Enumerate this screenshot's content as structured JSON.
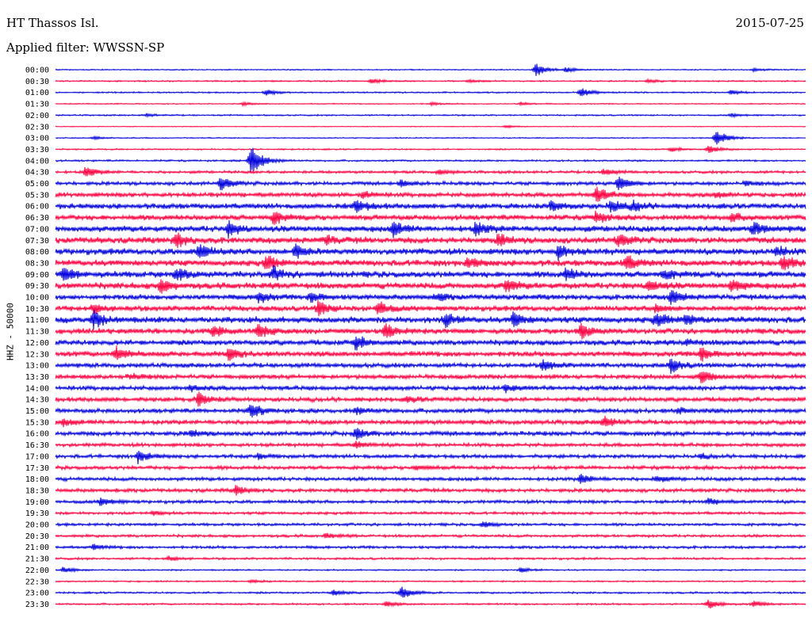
{
  "header": {
    "station": "HT Thassos Isl.",
    "date": "2015-07-25",
    "filter": "Applied filter: WWSSN-SP"
  },
  "chart_data": {
    "type": "line",
    "title": "HT Thassos Isl.",
    "subtitle": "Applied filter: WWSSN-SP",
    "ylabel": "HHZ - 50000",
    "xlabel": "",
    "legend": "none",
    "grid": false,
    "colors": {
      "even_rows": "#0000dd",
      "odd_rows": "#ff0040"
    },
    "rows": [
      {
        "label": "00:00",
        "noise": 0.6,
        "events": [
          {
            "t": 0.64,
            "a": 9
          },
          {
            "t": 0.68,
            "a": 3
          },
          {
            "t": 0.93,
            "a": 2
          }
        ]
      },
      {
        "label": "00:30",
        "noise": 0.8,
        "events": [
          {
            "t": 0.42,
            "a": 3
          },
          {
            "t": 0.55,
            "a": 2
          },
          {
            "t": 0.79,
            "a": 2
          }
        ]
      },
      {
        "label": "01:00",
        "noise": 0.8,
        "events": [
          {
            "t": 0.28,
            "a": 4
          },
          {
            "t": 0.7,
            "a": 6
          },
          {
            "t": 0.9,
            "a": 3
          }
        ]
      },
      {
        "label": "01:30",
        "noise": 0.6,
        "events": [
          {
            "t": 0.25,
            "a": 2
          },
          {
            "t": 0.5,
            "a": 2
          },
          {
            "t": 0.62,
            "a": 2
          }
        ]
      },
      {
        "label": "02:00",
        "noise": 0.8,
        "events": [
          {
            "t": 0.12,
            "a": 2
          },
          {
            "t": 0.9,
            "a": 2
          }
        ]
      },
      {
        "label": "02:30",
        "noise": 0.4,
        "events": [
          {
            "t": 0.6,
            "a": 2
          }
        ]
      },
      {
        "label": "03:00",
        "noise": 0.6,
        "events": [
          {
            "t": 0.05,
            "a": 2
          },
          {
            "t": 0.88,
            "a": 12
          }
        ]
      },
      {
        "label": "03:30",
        "noise": 0.8,
        "events": [
          {
            "t": 0.82,
            "a": 3
          },
          {
            "t": 0.87,
            "a": 5
          }
        ]
      },
      {
        "label": "04:00",
        "noise": 1.0,
        "events": [
          {
            "t": 0.26,
            "a": 25
          }
        ]
      },
      {
        "label": "04:30",
        "noise": 1.5,
        "events": [
          {
            "t": 0.04,
            "a": 8
          },
          {
            "t": 0.51,
            "a": 3
          },
          {
            "t": 0.73,
            "a": 4
          }
        ]
      },
      {
        "label": "05:00",
        "noise": 2.0,
        "events": [
          {
            "t": 0.22,
            "a": 9
          },
          {
            "t": 0.46,
            "a": 4
          },
          {
            "t": 0.75,
            "a": 10
          },
          {
            "t": 0.92,
            "a": 3
          }
        ]
      },
      {
        "label": "05:30",
        "noise": 2.5,
        "events": [
          {
            "t": 0.41,
            "a": 4
          },
          {
            "t": 0.72,
            "a": 10
          },
          {
            "t": 0.88,
            "a": 3
          }
        ]
      },
      {
        "label": "06:00",
        "noise": 3.0,
        "events": [
          {
            "t": 0.4,
            "a": 9
          },
          {
            "t": 0.66,
            "a": 6
          },
          {
            "t": 0.74,
            "a": 8
          },
          {
            "t": 0.77,
            "a": 6
          }
        ]
      },
      {
        "label": "06:30",
        "noise": 3.0,
        "events": [
          {
            "t": 0.29,
            "a": 8
          },
          {
            "t": 0.72,
            "a": 7
          },
          {
            "t": 0.9,
            "a": 5
          }
        ]
      },
      {
        "label": "07:00",
        "noise": 3.5,
        "events": [
          {
            "t": 0.23,
            "a": 9
          },
          {
            "t": 0.45,
            "a": 9
          },
          {
            "t": 0.56,
            "a": 9
          },
          {
            "t": 0.93,
            "a": 8
          }
        ]
      },
      {
        "label": "07:30",
        "noise": 3.5,
        "events": [
          {
            "t": 0.16,
            "a": 9
          },
          {
            "t": 0.36,
            "a": 5
          },
          {
            "t": 0.59,
            "a": 7
          },
          {
            "t": 0.75,
            "a": 8
          }
        ]
      },
      {
        "label": "08:00",
        "noise": 3.5,
        "events": [
          {
            "t": 0.19,
            "a": 9
          },
          {
            "t": 0.32,
            "a": 9
          },
          {
            "t": 0.67,
            "a": 9
          },
          {
            "t": 0.96,
            "a": 6
          }
        ]
      },
      {
        "label": "08:30",
        "noise": 3.5,
        "events": [
          {
            "t": 0.28,
            "a": 9
          },
          {
            "t": 0.55,
            "a": 6
          },
          {
            "t": 0.76,
            "a": 9
          },
          {
            "t": 0.97,
            "a": 9
          }
        ]
      },
      {
        "label": "09:00",
        "noise": 3.5,
        "events": [
          {
            "t": 0.01,
            "a": 9
          },
          {
            "t": 0.16,
            "a": 8
          },
          {
            "t": 0.29,
            "a": 8
          },
          {
            "t": 0.68,
            "a": 7
          },
          {
            "t": 0.81,
            "a": 6
          }
        ]
      },
      {
        "label": "09:30",
        "noise": 3.5,
        "events": [
          {
            "t": 0.14,
            "a": 9
          },
          {
            "t": 0.6,
            "a": 8
          },
          {
            "t": 0.79,
            "a": 7
          },
          {
            "t": 0.9,
            "a": 8
          }
        ]
      },
      {
        "label": "10:00",
        "noise": 3.0,
        "events": [
          {
            "t": 0.27,
            "a": 7
          },
          {
            "t": 0.34,
            "a": 7
          },
          {
            "t": 0.51,
            "a": 4
          },
          {
            "t": 0.82,
            "a": 9
          }
        ]
      },
      {
        "label": "10:30",
        "noise": 3.0,
        "events": [
          {
            "t": 0.05,
            "a": 6
          },
          {
            "t": 0.35,
            "a": 9
          },
          {
            "t": 0.43,
            "a": 9
          },
          {
            "t": 0.8,
            "a": 5
          }
        ]
      },
      {
        "label": "11:00",
        "noise": 3.5,
        "events": [
          {
            "t": 0.05,
            "a": 10
          },
          {
            "t": 0.52,
            "a": 8
          },
          {
            "t": 0.61,
            "a": 9
          },
          {
            "t": 0.8,
            "a": 9
          },
          {
            "t": 0.84,
            "a": 7
          }
        ]
      },
      {
        "label": "11:30",
        "noise": 3.0,
        "events": [
          {
            "t": 0.21,
            "a": 7
          },
          {
            "t": 0.27,
            "a": 9
          },
          {
            "t": 0.44,
            "a": 9
          },
          {
            "t": 0.7,
            "a": 9
          }
        ]
      },
      {
        "label": "12:00",
        "noise": 3.0,
        "events": [
          {
            "t": 0.4,
            "a": 9
          },
          {
            "t": 0.84,
            "a": 4
          }
        ]
      },
      {
        "label": "12:30",
        "noise": 3.0,
        "events": [
          {
            "t": 0.08,
            "a": 9
          },
          {
            "t": 0.23,
            "a": 8
          },
          {
            "t": 0.86,
            "a": 9
          }
        ]
      },
      {
        "label": "13:00",
        "noise": 2.5,
        "events": [
          {
            "t": 0.65,
            "a": 7
          },
          {
            "t": 0.82,
            "a": 9
          }
        ]
      },
      {
        "label": "13:30",
        "noise": 2.5,
        "events": [
          {
            "t": 0.1,
            "a": 3
          },
          {
            "t": 0.86,
            "a": 9
          }
        ]
      },
      {
        "label": "14:00",
        "noise": 2.5,
        "events": [
          {
            "t": 0.18,
            "a": 4
          },
          {
            "t": 0.6,
            "a": 4
          }
        ]
      },
      {
        "label": "14:30",
        "noise": 2.5,
        "events": [
          {
            "t": 0.19,
            "a": 9
          },
          {
            "t": 0.47,
            "a": 3
          }
        ]
      },
      {
        "label": "15:00",
        "noise": 2.5,
        "events": [
          {
            "t": 0.26,
            "a": 9
          },
          {
            "t": 0.4,
            "a": 4
          },
          {
            "t": 0.83,
            "a": 4
          }
        ]
      },
      {
        "label": "15:30",
        "noise": 2.5,
        "events": [
          {
            "t": 0.01,
            "a": 4
          },
          {
            "t": 0.73,
            "a": 7
          }
        ]
      },
      {
        "label": "16:00",
        "noise": 2.5,
        "events": [
          {
            "t": 0.4,
            "a": 7
          },
          {
            "t": 0.18,
            "a": 4
          }
        ]
      },
      {
        "label": "16:30",
        "noise": 2.0,
        "events": [
          {
            "t": 0.4,
            "a": 4
          }
        ]
      },
      {
        "label": "17:00",
        "noise": 2.0,
        "events": [
          {
            "t": 0.11,
            "a": 8
          },
          {
            "t": 0.27,
            "a": 3
          },
          {
            "t": 0.86,
            "a": 3
          }
        ]
      },
      {
        "label": "17:30",
        "noise": 2.0,
        "events": [
          {
            "t": 0.48,
            "a": 3
          }
        ]
      },
      {
        "label": "18:00",
        "noise": 2.0,
        "events": [
          {
            "t": 0.7,
            "a": 6
          },
          {
            "t": 0.8,
            "a": 4
          }
        ]
      },
      {
        "label": "18:30",
        "noise": 2.0,
        "events": [
          {
            "t": 0.24,
            "a": 6
          }
        ]
      },
      {
        "label": "19:00",
        "noise": 1.8,
        "events": [
          {
            "t": 0.06,
            "a": 5
          },
          {
            "t": 0.87,
            "a": 4
          }
        ]
      },
      {
        "label": "19:30",
        "noise": 1.5,
        "events": [
          {
            "t": 0.13,
            "a": 3
          }
        ]
      },
      {
        "label": "20:00",
        "noise": 1.5,
        "events": [
          {
            "t": 0.57,
            "a": 4
          }
        ]
      },
      {
        "label": "20:30",
        "noise": 1.5,
        "events": [
          {
            "t": 0.36,
            "a": 3
          }
        ]
      },
      {
        "label": "21:00",
        "noise": 1.5,
        "events": [
          {
            "t": 0.05,
            "a": 3
          }
        ]
      },
      {
        "label": "21:30",
        "noise": 1.2,
        "events": [
          {
            "t": 0.15,
            "a": 3
          }
        ]
      },
      {
        "label": "22:00",
        "noise": 0.8,
        "events": [
          {
            "t": 0.01,
            "a": 4
          },
          {
            "t": 0.62,
            "a": 3
          }
        ]
      },
      {
        "label": "22:30",
        "noise": 0.8,
        "events": [
          {
            "t": 0.26,
            "a": 2
          }
        ]
      },
      {
        "label": "23:00",
        "noise": 1.0,
        "events": [
          {
            "t": 0.37,
            "a": 4
          },
          {
            "t": 0.46,
            "a": 9
          }
        ]
      },
      {
        "label": "23:30",
        "noise": 1.0,
        "events": [
          {
            "t": 0.44,
            "a": 3
          },
          {
            "t": 0.87,
            "a": 6
          },
          {
            "t": 0.93,
            "a": 4
          }
        ]
      }
    ]
  }
}
